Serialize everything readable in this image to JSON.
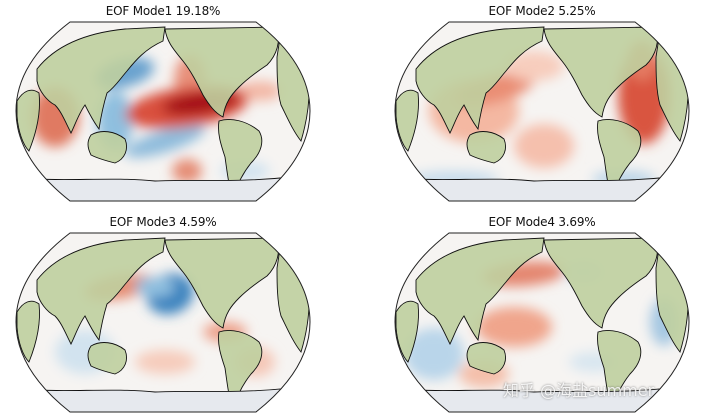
{
  "panels": [
    {
      "title": "EOF Mode1  19.18%",
      "variance_percent": 19.18
    },
    {
      "title": "EOF Mode2  5.25%",
      "variance_percent": 5.25
    },
    {
      "title": "EOF Mode3  4.59%",
      "variance_percent": 4.59
    },
    {
      "title": "EOF Mode4  3.69%",
      "variance_percent": 3.69
    }
  ],
  "colors": {
    "positive": "#b2182b",
    "negative": "#2166ac",
    "land": "#bfcf9e",
    "ocean": "#f6f4f2"
  },
  "watermark": "知乎 @海盐summer"
}
